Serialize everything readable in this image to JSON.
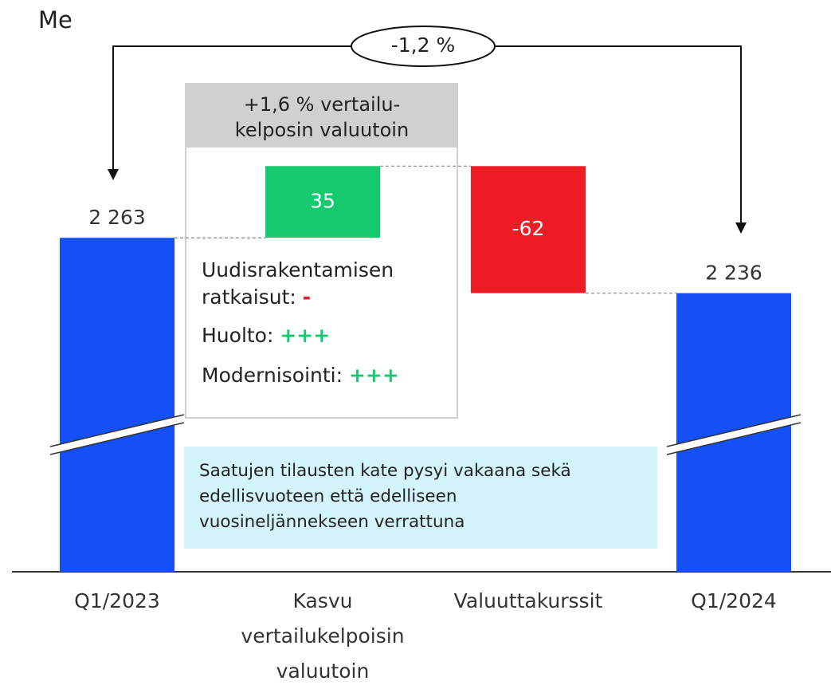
{
  "chart_data": {
    "type": "waterfall",
    "unit_label": "Me",
    "categories": [
      "Q1/2023",
      "Kasvu vertailukelpoisin valuutoin",
      "Valuuttakurssit",
      "Q1/2024"
    ],
    "values": [
      2263,
      35,
      -62,
      2236
    ],
    "value_labels": [
      "2 263",
      "35",
      "-62",
      "2 236"
    ],
    "measure": [
      "absolute",
      "relative",
      "relative",
      "total"
    ],
    "colors": {
      "total": "#1450f5",
      "increase": "#14c96e",
      "decrease": "#ee1c25"
    },
    "ylim": [
      2100,
      2360
    ],
    "axis_break": true,
    "change_annotation": "-1,2 %",
    "box": {
      "title": [
        "+1,6 % vertailu-",
        "kelposin valuutoin"
      ],
      "items": [
        {
          "label": "Uudisrakentamisen ratkaisut:",
          "mark": "-",
          "color": "#e81c24"
        },
        {
          "label": "Huolto:",
          "mark": "+++",
          "color": "#14c96e"
        },
        {
          "label": "Modernisointi:",
          "mark": "+++",
          "color": "#14c96e"
        }
      ]
    },
    "note": "Saatujen tilausten kate pysyi vakaana sekä edellisvuoteen että edelliseen vuosineljännekseen verrattuna"
  }
}
